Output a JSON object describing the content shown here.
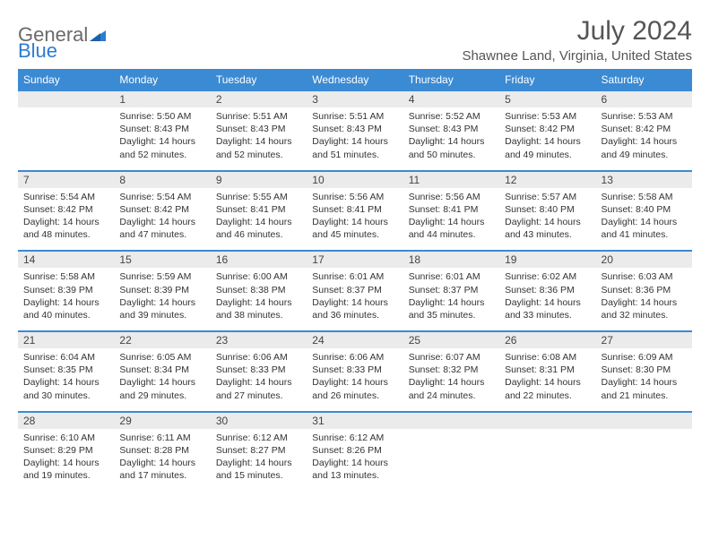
{
  "logo": {
    "general": "General",
    "blue": "Blue"
  },
  "header": {
    "month_title": "July 2024",
    "location": "Shawnee Land, Virginia, United States"
  },
  "colors": {
    "accent": "#3b8ad4",
    "header_row_bg": "#ebebeb",
    "text_muted": "#555555",
    "text_body": "#333333",
    "logo_gray": "#6a6a6a",
    "logo_blue": "#2b7cd3",
    "background": "#ffffff"
  },
  "weekdays": [
    "Sunday",
    "Monday",
    "Tuesday",
    "Wednesday",
    "Thursday",
    "Friday",
    "Saturday"
  ],
  "weeks": [
    [
      null,
      {
        "num": "1",
        "sunrise": "Sunrise: 5:50 AM",
        "sunset": "Sunset: 8:43 PM",
        "day1": "Daylight: 14 hours",
        "day2": "and 52 minutes."
      },
      {
        "num": "2",
        "sunrise": "Sunrise: 5:51 AM",
        "sunset": "Sunset: 8:43 PM",
        "day1": "Daylight: 14 hours",
        "day2": "and 52 minutes."
      },
      {
        "num": "3",
        "sunrise": "Sunrise: 5:51 AM",
        "sunset": "Sunset: 8:43 PM",
        "day1": "Daylight: 14 hours",
        "day2": "and 51 minutes."
      },
      {
        "num": "4",
        "sunrise": "Sunrise: 5:52 AM",
        "sunset": "Sunset: 8:43 PM",
        "day1": "Daylight: 14 hours",
        "day2": "and 50 minutes."
      },
      {
        "num": "5",
        "sunrise": "Sunrise: 5:53 AM",
        "sunset": "Sunset: 8:42 PM",
        "day1": "Daylight: 14 hours",
        "day2": "and 49 minutes."
      },
      {
        "num": "6",
        "sunrise": "Sunrise: 5:53 AM",
        "sunset": "Sunset: 8:42 PM",
        "day1": "Daylight: 14 hours",
        "day2": "and 49 minutes."
      }
    ],
    [
      {
        "num": "7",
        "sunrise": "Sunrise: 5:54 AM",
        "sunset": "Sunset: 8:42 PM",
        "day1": "Daylight: 14 hours",
        "day2": "and 48 minutes."
      },
      {
        "num": "8",
        "sunrise": "Sunrise: 5:54 AM",
        "sunset": "Sunset: 8:42 PM",
        "day1": "Daylight: 14 hours",
        "day2": "and 47 minutes."
      },
      {
        "num": "9",
        "sunrise": "Sunrise: 5:55 AM",
        "sunset": "Sunset: 8:41 PM",
        "day1": "Daylight: 14 hours",
        "day2": "and 46 minutes."
      },
      {
        "num": "10",
        "sunrise": "Sunrise: 5:56 AM",
        "sunset": "Sunset: 8:41 PM",
        "day1": "Daylight: 14 hours",
        "day2": "and 45 minutes."
      },
      {
        "num": "11",
        "sunrise": "Sunrise: 5:56 AM",
        "sunset": "Sunset: 8:41 PM",
        "day1": "Daylight: 14 hours",
        "day2": "and 44 minutes."
      },
      {
        "num": "12",
        "sunrise": "Sunrise: 5:57 AM",
        "sunset": "Sunset: 8:40 PM",
        "day1": "Daylight: 14 hours",
        "day2": "and 43 minutes."
      },
      {
        "num": "13",
        "sunrise": "Sunrise: 5:58 AM",
        "sunset": "Sunset: 8:40 PM",
        "day1": "Daylight: 14 hours",
        "day2": "and 41 minutes."
      }
    ],
    [
      {
        "num": "14",
        "sunrise": "Sunrise: 5:58 AM",
        "sunset": "Sunset: 8:39 PM",
        "day1": "Daylight: 14 hours",
        "day2": "and 40 minutes."
      },
      {
        "num": "15",
        "sunrise": "Sunrise: 5:59 AM",
        "sunset": "Sunset: 8:39 PM",
        "day1": "Daylight: 14 hours",
        "day2": "and 39 minutes."
      },
      {
        "num": "16",
        "sunrise": "Sunrise: 6:00 AM",
        "sunset": "Sunset: 8:38 PM",
        "day1": "Daylight: 14 hours",
        "day2": "and 38 minutes."
      },
      {
        "num": "17",
        "sunrise": "Sunrise: 6:01 AM",
        "sunset": "Sunset: 8:37 PM",
        "day1": "Daylight: 14 hours",
        "day2": "and 36 minutes."
      },
      {
        "num": "18",
        "sunrise": "Sunrise: 6:01 AM",
        "sunset": "Sunset: 8:37 PM",
        "day1": "Daylight: 14 hours",
        "day2": "and 35 minutes."
      },
      {
        "num": "19",
        "sunrise": "Sunrise: 6:02 AM",
        "sunset": "Sunset: 8:36 PM",
        "day1": "Daylight: 14 hours",
        "day2": "and 33 minutes."
      },
      {
        "num": "20",
        "sunrise": "Sunrise: 6:03 AM",
        "sunset": "Sunset: 8:36 PM",
        "day1": "Daylight: 14 hours",
        "day2": "and 32 minutes."
      }
    ],
    [
      {
        "num": "21",
        "sunrise": "Sunrise: 6:04 AM",
        "sunset": "Sunset: 8:35 PM",
        "day1": "Daylight: 14 hours",
        "day2": "and 30 minutes."
      },
      {
        "num": "22",
        "sunrise": "Sunrise: 6:05 AM",
        "sunset": "Sunset: 8:34 PM",
        "day1": "Daylight: 14 hours",
        "day2": "and 29 minutes."
      },
      {
        "num": "23",
        "sunrise": "Sunrise: 6:06 AM",
        "sunset": "Sunset: 8:33 PM",
        "day1": "Daylight: 14 hours",
        "day2": "and 27 minutes."
      },
      {
        "num": "24",
        "sunrise": "Sunrise: 6:06 AM",
        "sunset": "Sunset: 8:33 PM",
        "day1": "Daylight: 14 hours",
        "day2": "and 26 minutes."
      },
      {
        "num": "25",
        "sunrise": "Sunrise: 6:07 AM",
        "sunset": "Sunset: 8:32 PM",
        "day1": "Daylight: 14 hours",
        "day2": "and 24 minutes."
      },
      {
        "num": "26",
        "sunrise": "Sunrise: 6:08 AM",
        "sunset": "Sunset: 8:31 PM",
        "day1": "Daylight: 14 hours",
        "day2": "and 22 minutes."
      },
      {
        "num": "27",
        "sunrise": "Sunrise: 6:09 AM",
        "sunset": "Sunset: 8:30 PM",
        "day1": "Daylight: 14 hours",
        "day2": "and 21 minutes."
      }
    ],
    [
      {
        "num": "28",
        "sunrise": "Sunrise: 6:10 AM",
        "sunset": "Sunset: 8:29 PM",
        "day1": "Daylight: 14 hours",
        "day2": "and 19 minutes."
      },
      {
        "num": "29",
        "sunrise": "Sunrise: 6:11 AM",
        "sunset": "Sunset: 8:28 PM",
        "day1": "Daylight: 14 hours",
        "day2": "and 17 minutes."
      },
      {
        "num": "30",
        "sunrise": "Sunrise: 6:12 AM",
        "sunset": "Sunset: 8:27 PM",
        "day1": "Daylight: 14 hours",
        "day2": "and 15 minutes."
      },
      {
        "num": "31",
        "sunrise": "Sunrise: 6:12 AM",
        "sunset": "Sunset: 8:26 PM",
        "day1": "Daylight: 14 hours",
        "day2": "and 13 minutes."
      },
      null,
      null,
      null
    ]
  ]
}
